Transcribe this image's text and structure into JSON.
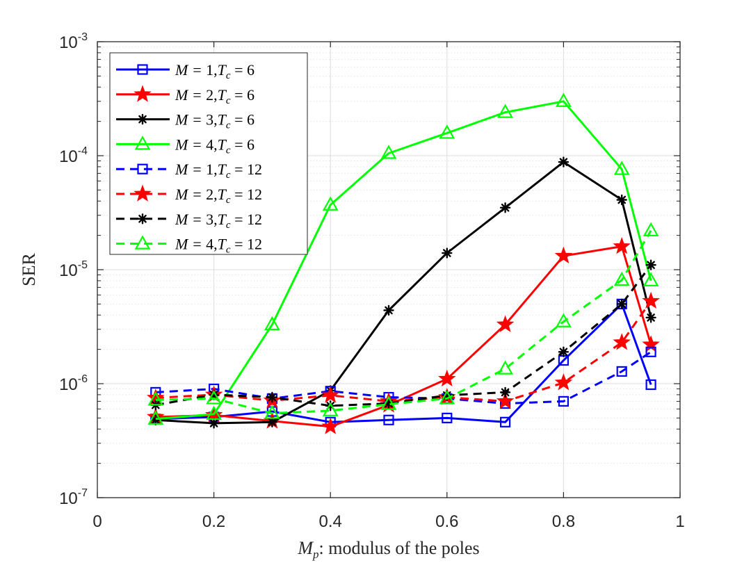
{
  "chart_data": {
    "type": "line",
    "xscale": "linear",
    "yscale": "log",
    "xlabel_var": "M",
    "xlabel_sub": "p",
    "xlabel_rest": ": modulus of the poles",
    "ylabel": "SER",
    "xlim": [
      0,
      1
    ],
    "ylim": [
      1e-07,
      0.001
    ],
    "xticks": [
      0,
      0.2,
      0.4,
      0.6,
      0.8,
      1
    ],
    "xtick_labels": [
      "0",
      "0.2",
      "0.4",
      "0.6",
      "0.8",
      "1"
    ],
    "yticks": [
      1e-07,
      1e-06,
      1e-05,
      0.0001,
      0.001
    ],
    "ytick_base": "10",
    "ytick_exps": [
      "-7",
      "-6",
      "-5",
      "-4",
      "-3"
    ],
    "grid": true,
    "legend_position": "top-left",
    "x": [
      0.1,
      0.2,
      0.3,
      0.4,
      0.5,
      0.6,
      0.7,
      0.8,
      0.9,
      0.95
    ],
    "series": [
      {
        "name": "M = 1,Tc = 6",
        "M": "1",
        "Tc": "6",
        "color": "#0000ff",
        "marker": "square",
        "linestyle": "solid",
        "values": [
          4.9e-07,
          5.1e-07,
          5.7e-07,
          4.6e-07,
          4.8e-07,
          5e-07,
          4.6e-07,
          1.6e-06,
          5e-06,
          9.8e-07
        ]
      },
      {
        "name": "M = 2,Tc = 6",
        "M": "2",
        "Tc": "6",
        "color": "#ff0000",
        "marker": "star",
        "linestyle": "solid",
        "values": [
          5.1e-07,
          5.3e-07,
          4.7e-07,
          4.2e-07,
          6.5e-07,
          1.1e-06,
          3.3e-06,
          1.32e-05,
          1.6e-05,
          2.2e-06
        ]
      },
      {
        "name": "M = 3,Tc = 6",
        "M": "3",
        "Tc": "6",
        "color": "#000000",
        "marker": "asterisk",
        "linestyle": "solid",
        "values": [
          4.8e-07,
          4.5e-07,
          4.6e-07,
          8.7e-07,
          4.4e-06,
          1.4e-05,
          3.5e-05,
          8.8e-05,
          4.1e-05,
          3.8e-06
        ]
      },
      {
        "name": "M = 4,Tc = 6",
        "M": "4",
        "Tc": "6",
        "color": "#00ff00",
        "marker": "triangle",
        "linestyle": "solid",
        "values": [
          4.9e-07,
          5.4e-07,
          3.3e-06,
          3.7e-05,
          0.000105,
          0.000158,
          0.00024,
          0.0003,
          7.6e-05,
          8e-06
        ]
      },
      {
        "name": "M = 1,Tc = 12",
        "M": "1",
        "Tc": "12",
        "color": "#0000ff",
        "marker": "square",
        "linestyle": "dashed",
        "values": [
          8.4e-07,
          9e-07,
          7.4e-07,
          8.6e-07,
          7.6e-07,
          7.4e-07,
          6.7e-07,
          7e-07,
          1.28e-06,
          1.9e-06
        ]
      },
      {
        "name": "M = 2,Tc = 12",
        "M": "2",
        "Tc": "12",
        "color": "#ff0000",
        "marker": "star",
        "linestyle": "dashed",
        "values": [
          7.5e-07,
          8e-07,
          7.1e-07,
          7.9e-07,
          7e-07,
          7.6e-07,
          7e-07,
          1.02e-06,
          2.3e-06,
          5.3e-06
        ]
      },
      {
        "name": "M = 3,Tc = 12",
        "M": "3",
        "Tc": "12",
        "color": "#000000",
        "marker": "asterisk",
        "linestyle": "dashed",
        "values": [
          6.5e-07,
          8e-07,
          7.6e-07,
          6.4e-07,
          6.7e-07,
          7.9e-07,
          8.4e-07,
          1.9e-06,
          5e-06,
          1.1e-05
        ]
      },
      {
        "name": "M = 4,Tc = 12",
        "M": "4",
        "Tc": "12",
        "color": "#00ff00",
        "marker": "triangle",
        "linestyle": "dashed",
        "values": [
          7.2e-07,
          7.4e-07,
          5.5e-07,
          5.8e-07,
          6.6e-07,
          7.4e-07,
          1.35e-06,
          3.5e-06,
          8.1e-06,
          2.2e-05
        ]
      }
    ]
  }
}
